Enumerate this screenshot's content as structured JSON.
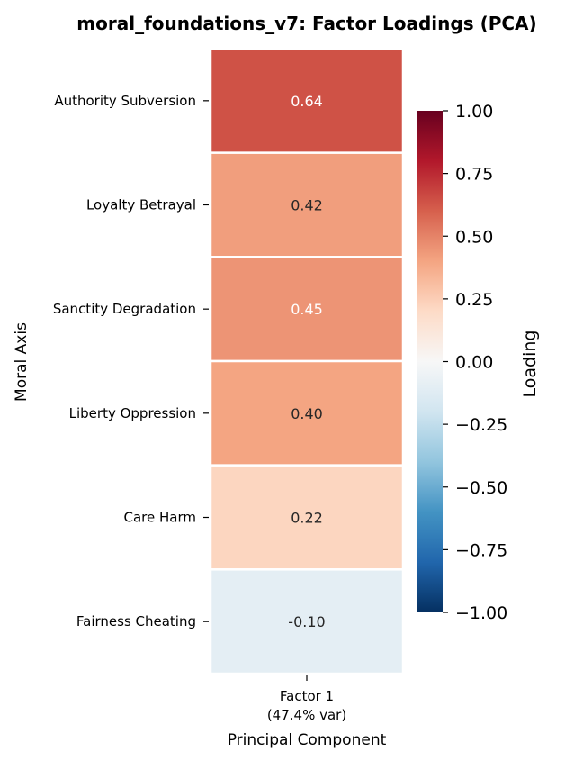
{
  "chart_data": {
    "type": "heatmap",
    "title": "moral_foundations_v7: Factor Loadings (PCA)",
    "xlabel": "Principal Component",
    "ylabel": "Moral Axis",
    "columns": [
      {
        "name": "Factor 1",
        "sub": "(47.4% var)"
      }
    ],
    "rows": [
      "Authority Subversion",
      "Loyalty Betrayal",
      "Sanctity Degradation",
      "Liberty Oppression",
      "Care Harm",
      "Fairness Cheating"
    ],
    "values": [
      [
        0.64
      ],
      [
        0.42
      ],
      [
        0.45
      ],
      [
        0.4
      ],
      [
        0.22
      ],
      [
        -0.1
      ]
    ],
    "value_labels": [
      "0.64",
      "0.42",
      "0.45",
      "0.40",
      "0.22",
      "-0.10"
    ],
    "colormap": "RdBu_r",
    "vmin": -1.0,
    "vmax": 1.0,
    "colorbar": {
      "label": "Loading",
      "ticks": [
        1.0,
        0.75,
        0.5,
        0.25,
        0.0,
        -0.25,
        -0.5,
        -0.75,
        -1.0
      ],
      "tick_labels": [
        "1.00",
        "0.75",
        "0.50",
        "0.25",
        "0.00",
        "−0.25",
        "−0.50",
        "−0.75",
        "−1.00"
      ]
    }
  }
}
